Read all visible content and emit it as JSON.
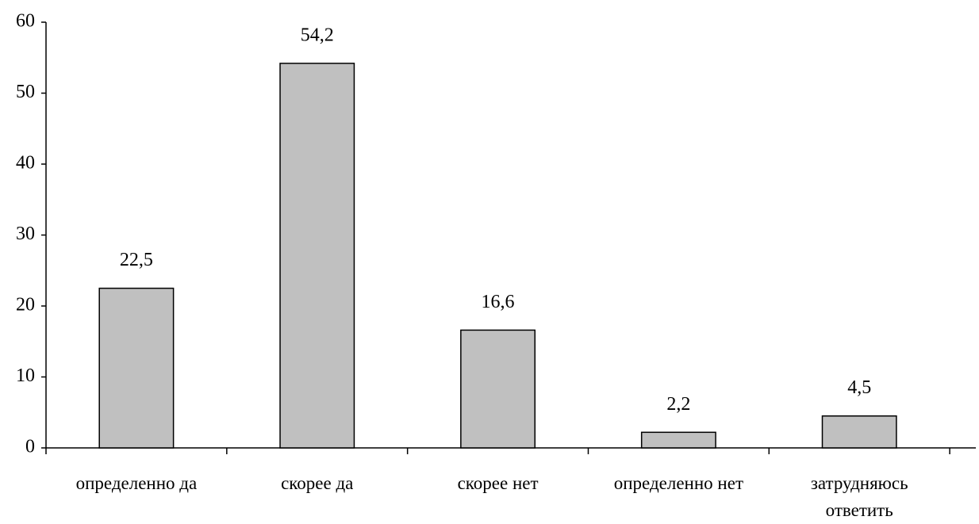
{
  "chart_data": {
    "type": "bar",
    "categories": [
      "определенно да",
      "скорее да",
      "скорее нет",
      "определенно нет",
      "затрудняюсь ответить"
    ],
    "values": [
      22.5,
      54.2,
      16.6,
      2.2,
      4.5
    ],
    "value_labels": [
      "22,5",
      "54,2",
      "16,6",
      "2,2",
      "4,5"
    ],
    "color": "#c0c0c0",
    "ylim": [
      0,
      60
    ],
    "yticks": [
      0,
      10,
      20,
      30,
      40,
      50,
      60
    ],
    "grid": false
  }
}
